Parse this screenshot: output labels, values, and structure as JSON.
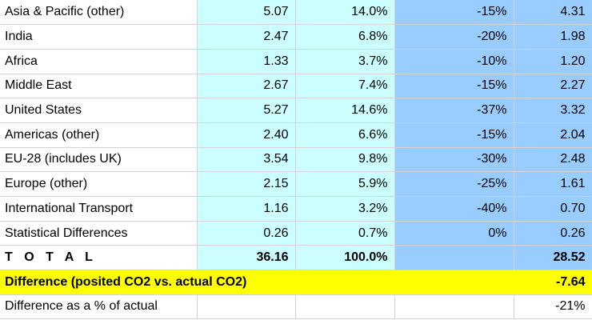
{
  "rows": [
    {
      "region": "Asia & Pacific (other)",
      "co2": "5.07",
      "share": "14.0%",
      "change": "-15%",
      "posited": "4.31"
    },
    {
      "region": "India",
      "co2": "2.47",
      "share": "6.8%",
      "change": "-20%",
      "posited": "1.98"
    },
    {
      "region": "Africa",
      "co2": "1.33",
      "share": "3.7%",
      "change": "-10%",
      "posited": "1.20"
    },
    {
      "region": "Middle East",
      "co2": "2.67",
      "share": "7.4%",
      "change": "-15%",
      "posited": "2.27"
    },
    {
      "region": "United States",
      "co2": "5.27",
      "share": "14.6%",
      "change": "-37%",
      "posited": "3.32"
    },
    {
      "region": "Americas (other)",
      "co2": "2.40",
      "share": "6.6%",
      "change": "-15%",
      "posited": "2.04"
    },
    {
      "region": "EU-28 (includes UK)",
      "co2": "3.54",
      "share": "9.8%",
      "change": "-30%",
      "posited": "2.48"
    },
    {
      "region": "Europe (other)",
      "co2": "2.15",
      "share": "5.9%",
      "change": "-25%",
      "posited": "1.61"
    },
    {
      "region": "International Transport",
      "co2": "1.16",
      "share": "3.2%",
      "change": "-40%",
      "posited": "0.70"
    },
    {
      "region": "Statistical Differences",
      "co2": "0.26",
      "share": "0.7%",
      "change": "0%",
      "posited": "0.26"
    }
  ],
  "total": {
    "label": "T O T A L",
    "co2": "36.16",
    "share": "100.0%",
    "posited": "28.52"
  },
  "difference": {
    "label": "Difference (posited CO2 vs. actual CO2)",
    "value": "-7.64"
  },
  "difference_pct": {
    "label": "Difference as a % of actual",
    "value": "-21%"
  },
  "colors": {
    "cyan_column": "#ccffff",
    "blue_column": "#99ccff",
    "highlight_row": "#ffff00",
    "gridline": "#d4d4d4"
  }
}
